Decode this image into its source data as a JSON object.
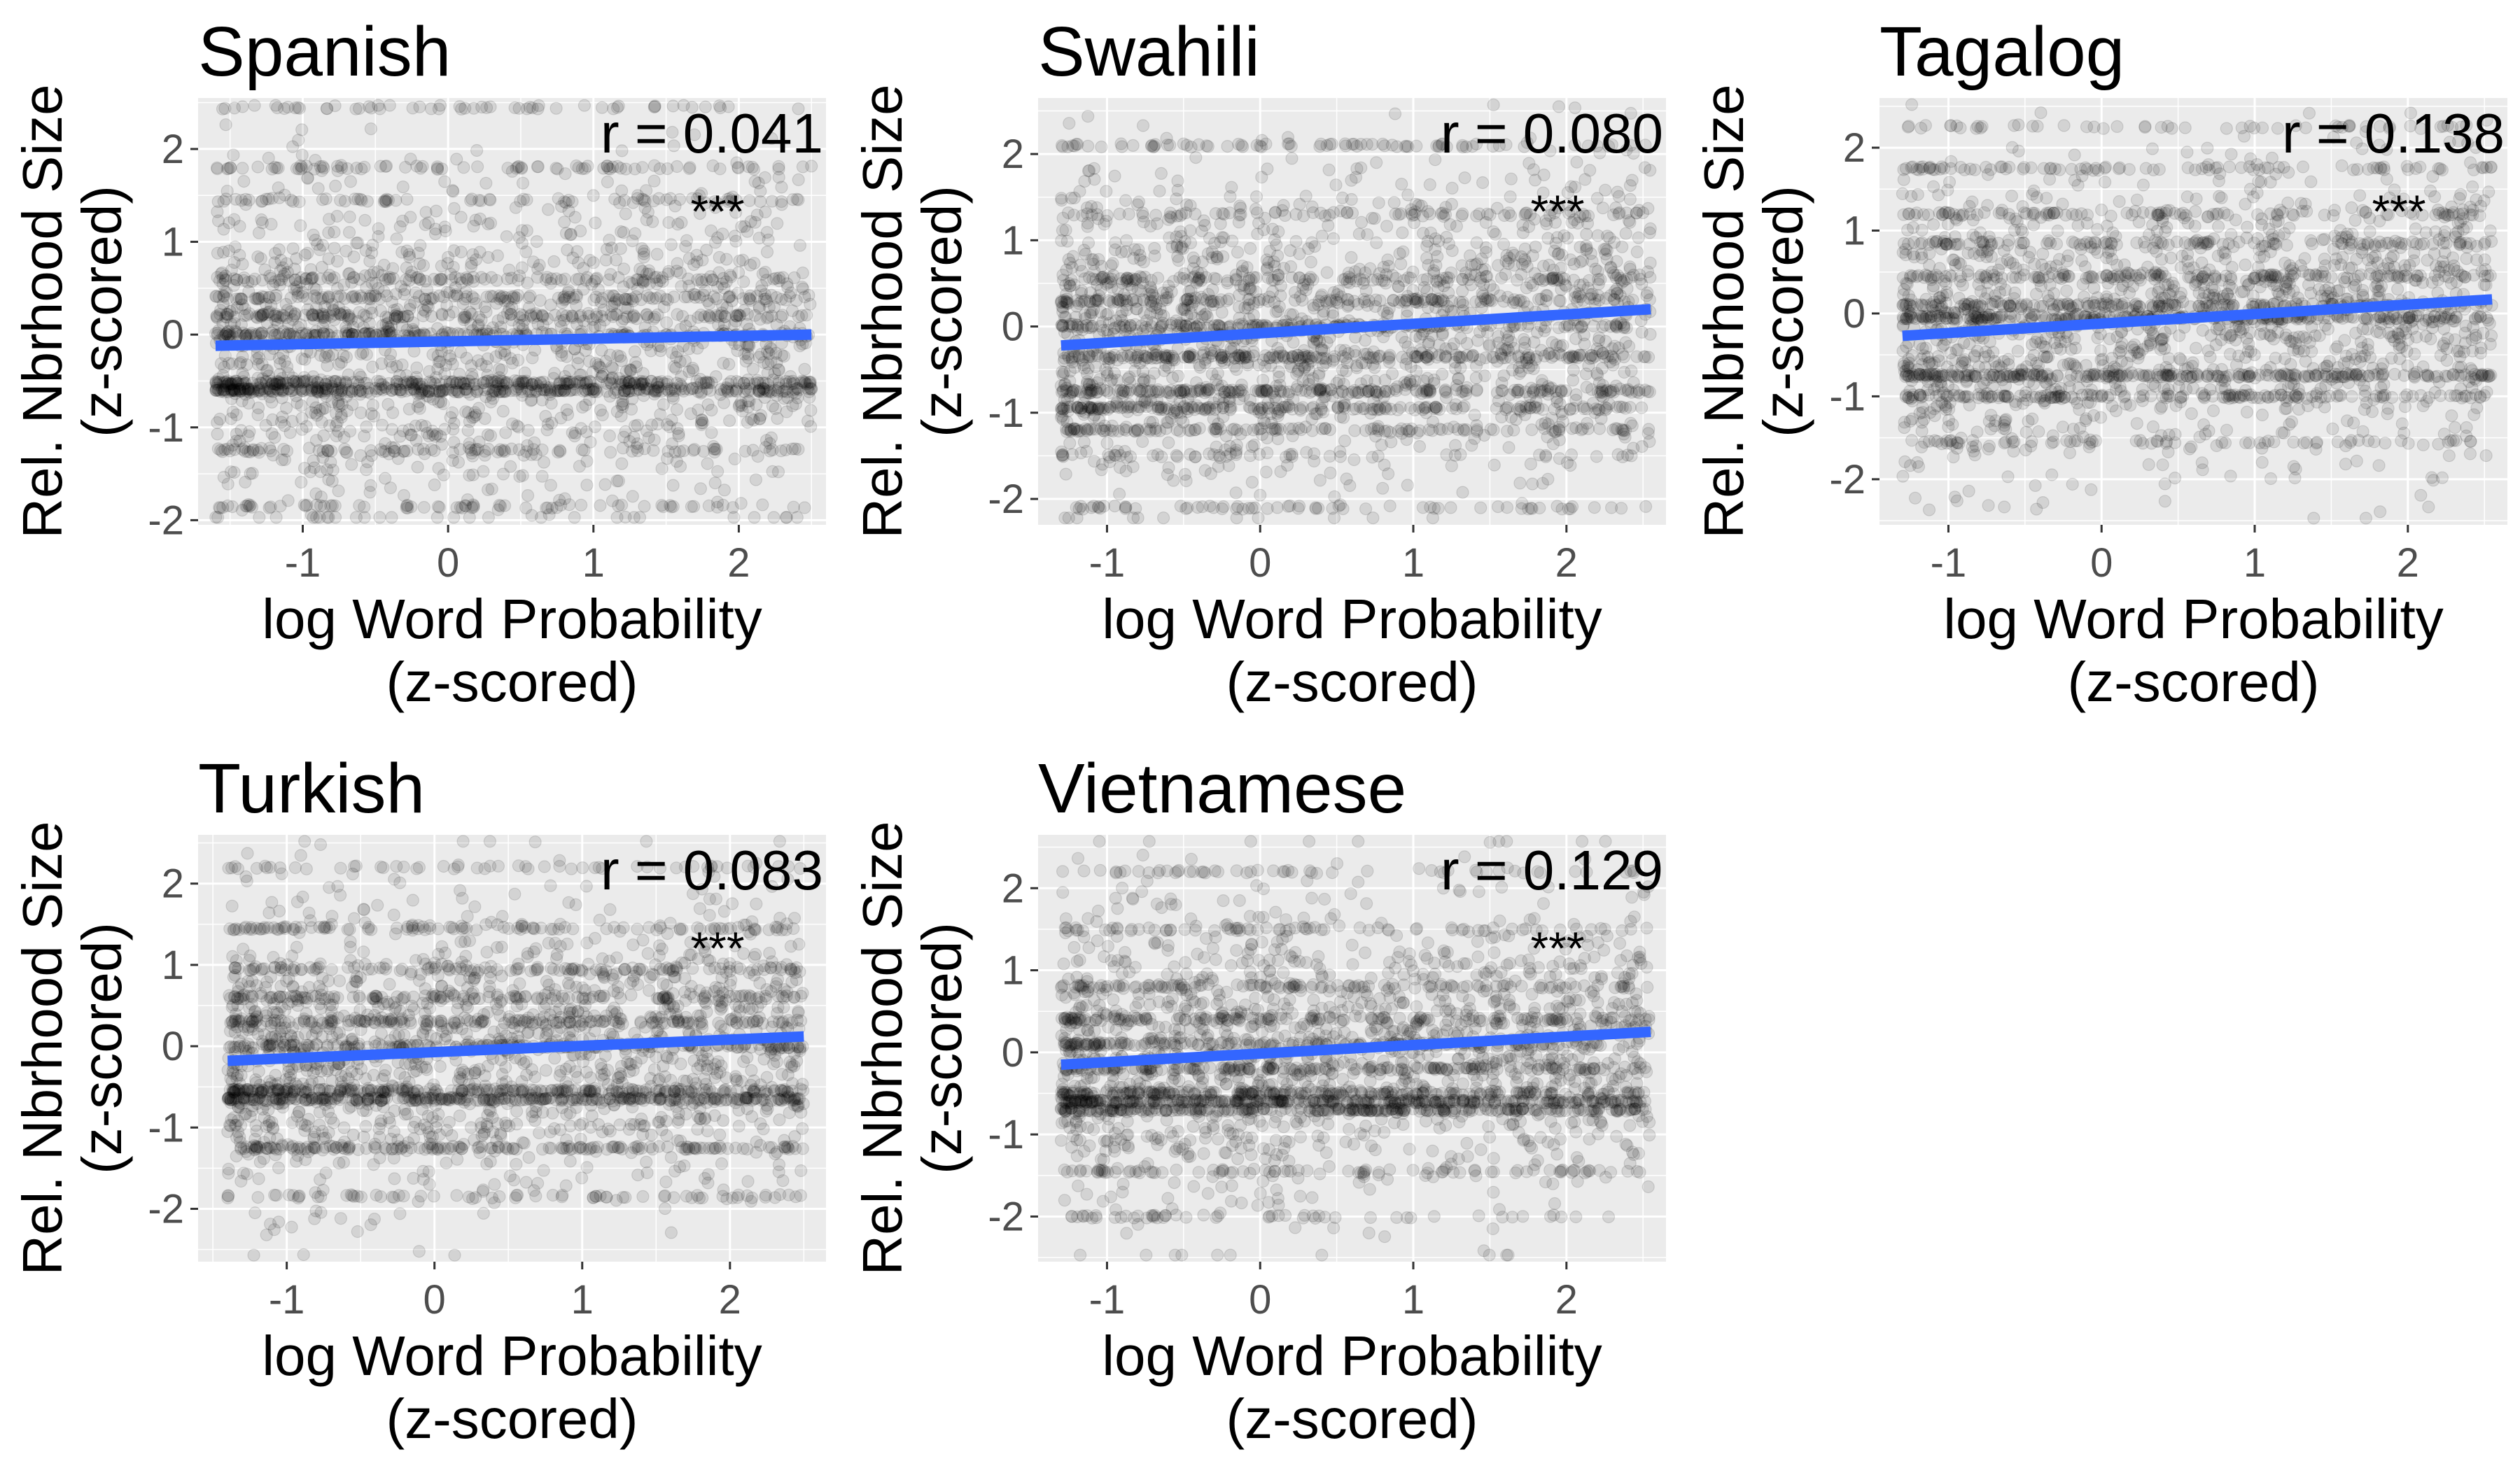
{
  "figure": {
    "xlabel_line1": "log Word Probability",
    "xlabel_line2": "(z-scored)",
    "ylabel_line1": "Rel. Nbrhood Size",
    "ylabel_line2": "(z-scored)",
    "colors": {
      "panel_bg": "#ebebeb",
      "gridline": "#ffffff",
      "points": "#000000",
      "fit_line": "#3366ff",
      "tick_text": "#4d4d4d",
      "title_text": "#000000"
    },
    "point_alpha": 0.1
  },
  "chart_data": [
    {
      "type": "scatter",
      "title": "Spanish",
      "annotation": "r = 0.041",
      "significance": "***",
      "xlim": [
        -1.72,
        2.6
      ],
      "ylim": [
        -2.05,
        2.55
      ],
      "x_ticks": [
        "-1",
        "0",
        "1",
        "2"
      ],
      "y_ticks": [
        "-2",
        "-1",
        "0",
        "1",
        "2"
      ],
      "x_range": [
        -1.6,
        2.5
      ],
      "fit_line": {
        "x": [
          -1.6,
          2.5
        ],
        "y": [
          -0.12,
          0.0
        ]
      },
      "density_bands": [
        -0.6,
        -0.52,
        0.0,
        0.2,
        0.4,
        0.6,
        1.45,
        1.8,
        -1.25,
        -1.85,
        2.45
      ],
      "band_strength": [
        1.0,
        0.9,
        0.6,
        0.4,
        0.35,
        0.3,
        0.25,
        0.3,
        0.3,
        0.25,
        0.2
      ]
    },
    {
      "type": "scatter",
      "title": "Swahili",
      "annotation": "r = 0.080",
      "significance": "***",
      "xlim": [
        -1.45,
        2.65
      ],
      "ylim": [
        -2.3,
        2.65
      ],
      "x_ticks": [
        "-1",
        "0",
        "1",
        "2"
      ],
      "y_ticks": [
        "-2",
        "-1",
        "0",
        "1",
        "2"
      ],
      "x_range": [
        -1.3,
        2.55
      ],
      "fit_line": {
        "x": [
          -1.3,
          2.55
        ],
        "y": [
          -0.22,
          0.2
        ]
      },
      "density_bands": [
        -0.75,
        -0.95,
        -1.2,
        -0.35,
        0.0,
        0.3,
        0.55,
        1.3,
        2.1,
        -2.1,
        -1.5
      ],
      "band_strength": [
        0.7,
        0.6,
        0.45,
        0.6,
        0.55,
        0.4,
        0.35,
        0.25,
        0.3,
        0.25,
        0.15
      ]
    },
    {
      "type": "scatter",
      "title": "Tagalog",
      "annotation": "r = 0.138",
      "significance": "***",
      "xlim": [
        -1.45,
        2.65
      ],
      "ylim": [
        -2.55,
        2.6
      ],
      "x_ticks": [
        "-1",
        "0",
        "1",
        "2"
      ],
      "y_ticks": [
        "-2",
        "-1",
        "0",
        "1",
        "2"
      ],
      "x_range": [
        -1.3,
        2.55
      ],
      "fit_line": {
        "x": [
          -1.3,
          2.55
        ],
        "y": [
          -0.27,
          0.17
        ]
      },
      "density_bands": [
        -0.75,
        -1.0,
        -0.05,
        0.1,
        0.45,
        0.85,
        1.2,
        1.75,
        2.25,
        -1.55
      ],
      "band_strength": [
        0.8,
        0.5,
        0.7,
        0.5,
        0.4,
        0.35,
        0.3,
        0.3,
        0.2,
        0.2
      ]
    },
    {
      "type": "scatter",
      "title": "Turkish",
      "annotation": "r = 0.083",
      "significance": "***",
      "xlim": [
        -1.6,
        2.65
      ],
      "ylim": [
        -2.65,
        2.6
      ],
      "x_ticks": [
        "-1",
        "0",
        "1",
        "2"
      ],
      "y_ticks": [
        "-2",
        "-1",
        "0",
        "1",
        "2"
      ],
      "x_range": [
        -1.4,
        2.5
      ],
      "fit_line": {
        "x": [
          -1.4,
          2.5
        ],
        "y": [
          -0.18,
          0.12
        ]
      },
      "density_bands": [
        -0.65,
        -0.55,
        -1.25,
        0.0,
        0.3,
        0.6,
        0.95,
        1.45,
        2.2,
        -1.85
      ],
      "band_strength": [
        1.0,
        0.8,
        0.55,
        0.55,
        0.45,
        0.4,
        0.35,
        0.35,
        0.2,
        0.25
      ]
    },
    {
      "type": "scatter",
      "title": "Vietnamese",
      "annotation": "r = 0.129",
      "significance": "***",
      "xlim": [
        -1.45,
        2.65
      ],
      "ylim": [
        -2.55,
        2.65
      ],
      "x_ticks": [
        "-1",
        "0",
        "1",
        "2"
      ],
      "y_ticks": [
        "-2",
        "-1",
        "0",
        "1",
        "2"
      ],
      "x_range": [
        -1.3,
        2.55
      ],
      "fit_line": {
        "x": [
          -1.3,
          2.55
        ],
        "y": [
          -0.15,
          0.25
        ]
      },
      "density_bands": [
        -0.6,
        -0.7,
        -0.5,
        -1.45,
        -0.2,
        0.1,
        0.4,
        0.8,
        1.5,
        2.2,
        -2.0
      ],
      "band_strength": [
        1.0,
        0.9,
        0.7,
        0.3,
        0.5,
        0.45,
        0.4,
        0.35,
        0.25,
        0.2,
        0.2
      ]
    }
  ]
}
